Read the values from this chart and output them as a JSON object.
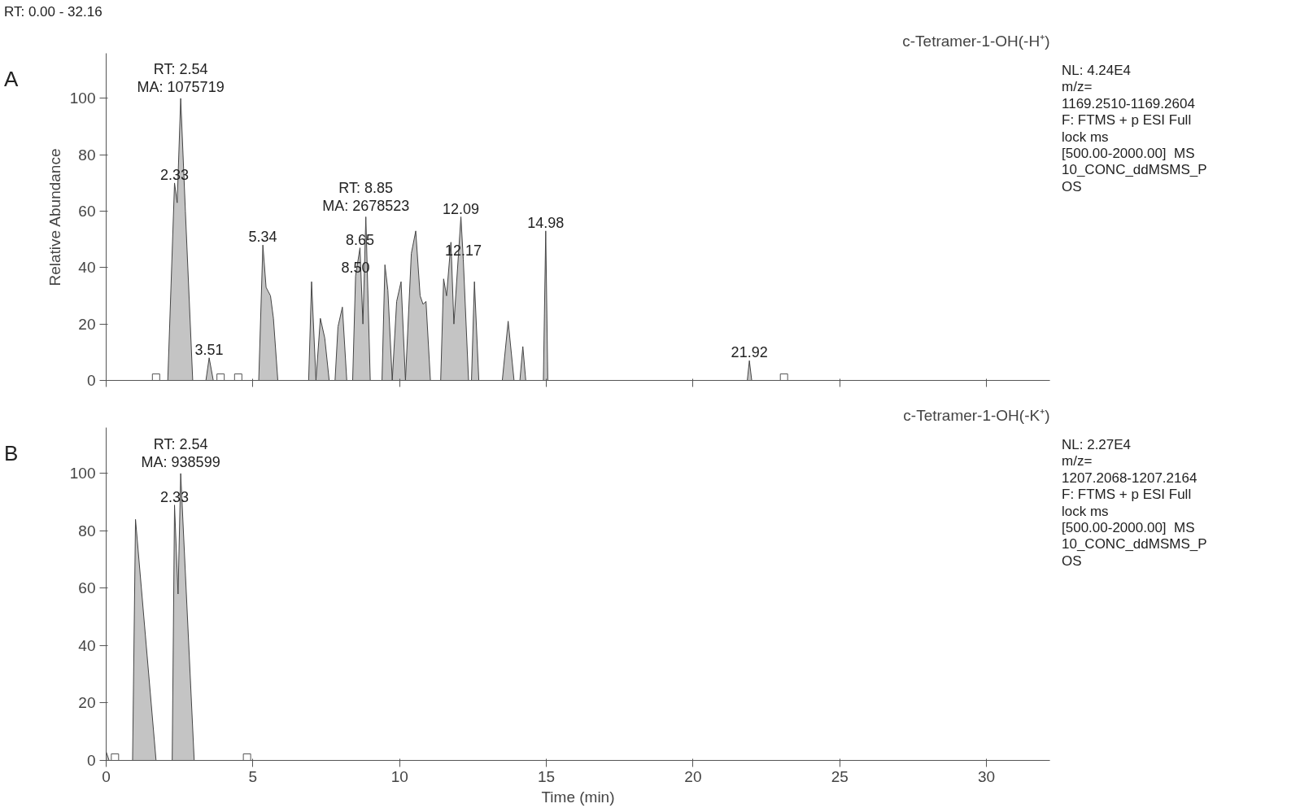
{
  "chart_data": [
    {
      "type": "area",
      "title": "c-Tetramer-1-OH(-H⁺)",
      "ylabel": "Relative Abundance",
      "xlim": [
        0,
        32.16
      ],
      "ylim": [
        0,
        116
      ],
      "xticks": [
        0,
        5,
        10,
        15,
        20,
        25,
        30
      ],
      "yticks": [
        0,
        20,
        40,
        60,
        80,
        100
      ],
      "tick_labels": "y",
      "annotations": [
        "RT: 0.00 - 32.16",
        "A",
        "NL: 4.24E4\nm/z=\n1169.2510-1169.2604\nF: FTMS + p ESI Full\nlock ms\n[500.00-2000.00]  MS\n10_CONC_ddMSMS_P\nOS",
        {
          "text": "RT: 2.54\nMA: 1075719",
          "x": 2.54,
          "y": 100
        },
        {
          "text": "2.33",
          "x": 2.33,
          "y": 70
        },
        {
          "text": "3.51",
          "x": 3.51,
          "y": 8
        },
        {
          "text": "5.34",
          "x": 5.34,
          "y": 48
        },
        {
          "text": "8.50",
          "x": 8.5,
          "y": 37
        },
        {
          "text": "8.65",
          "x": 8.65,
          "y": 47
        },
        {
          "text": "RT: 8.85\nMA: 2678523",
          "x": 8.85,
          "y": 58
        },
        {
          "text": "12.09",
          "x": 12.09,
          "y": 58
        },
        {
          "text": "12.17",
          "x": 12.17,
          "y": 43
        },
        {
          "text": "14.98",
          "x": 14.98,
          "y": 53
        },
        {
          "text": "21.92",
          "x": 21.92,
          "y": 7
        }
      ],
      "series": [
        {
          "color": "#c4c4c4",
          "x": [
            0,
            2.1,
            2.33,
            2.42,
            2.54,
            2.7,
            2.95,
            3.4,
            3.51,
            3.65,
            5.2,
            5.34,
            5.45,
            5.6,
            5.7,
            5.85,
            6.9,
            7.0,
            7.15,
            7.3,
            7.45,
            7.6,
            7.8,
            7.9,
            8.05,
            8.2,
            8.4,
            8.5,
            8.65,
            8.75,
            8.85,
            9.0,
            9.4,
            9.5,
            9.6,
            9.75,
            9.9,
            10.05,
            10.2,
            10.4,
            10.55,
            10.7,
            10.8,
            10.9,
            11.05,
            11.4,
            11.5,
            11.6,
            11.75,
            11.85,
            12.09,
            12.17,
            12.35,
            12.45,
            12.55,
            12.7,
            13.5,
            13.7,
            13.9,
            14.1,
            14.2,
            14.3,
            14.9,
            14.98,
            15.05,
            21.85,
            21.92,
            22.0,
            32.16
          ],
          "values": [
            0,
            0,
            70,
            63,
            100,
            60,
            0,
            0,
            8,
            0,
            0,
            48,
            33,
            30,
            22,
            0,
            0,
            35,
            0,
            22,
            15,
            0,
            0,
            19,
            26,
            0,
            0,
            37,
            47,
            20,
            58,
            0,
            0,
            41,
            32,
            0,
            28,
            35,
            0,
            45,
            53,
            30,
            27,
            28,
            0,
            0,
            36,
            30,
            49,
            20,
            58,
            43,
            0,
            0,
            35,
            0,
            0,
            21,
            0,
            0,
            12,
            0,
            0,
            53,
            0,
            0,
            7,
            0,
            0
          ]
        },
        {
          "type": "scatter",
          "marker": "square",
          "color": "#555555",
          "x": [
            1.7,
            3.9,
            4.5,
            23.1
          ],
          "values": [
            1,
            1,
            1,
            1
          ]
        }
      ]
    },
    {
      "type": "area",
      "title": "c-Tetramer-1-OH(-K⁺)",
      "xlabel": "Time (min)",
      "xlim": [
        0,
        32.16
      ],
      "ylim": [
        0,
        116
      ],
      "xticks": [
        0,
        5,
        10,
        15,
        20,
        25,
        30
      ],
      "yticks": [
        0,
        20,
        40,
        60,
        80,
        100
      ],
      "annotations": [
        "B",
        "NL: 2.27E4\nm/z=\n1207.2068-1207.2164\nF: FTMS + p ESI Full\nlock ms\n[500.00-2000.00]  MS\n10_CONC_ddMSMS_P\nOS",
        {
          "text": "RT: 2.54\nMA: 938599",
          "x": 2.54,
          "y": 100
        },
        {
          "text": "2.33",
          "x": 2.33,
          "y": 89
        }
      ],
      "series": [
        {
          "color": "#c4c4c4",
          "x": [
            0,
            0.1,
            0.9,
            1.0,
            1.7,
            2.25,
            2.33,
            2.45,
            2.54,
            3.0,
            32.16
          ],
          "values": [
            3,
            0,
            0,
            84,
            0,
            0,
            89,
            58,
            100,
            0,
            0
          ]
        },
        {
          "type": "scatter",
          "marker": "square",
          "color": "#555555",
          "x": [
            0.3,
            4.8
          ],
          "values": [
            1,
            1
          ]
        }
      ]
    }
  ]
}
